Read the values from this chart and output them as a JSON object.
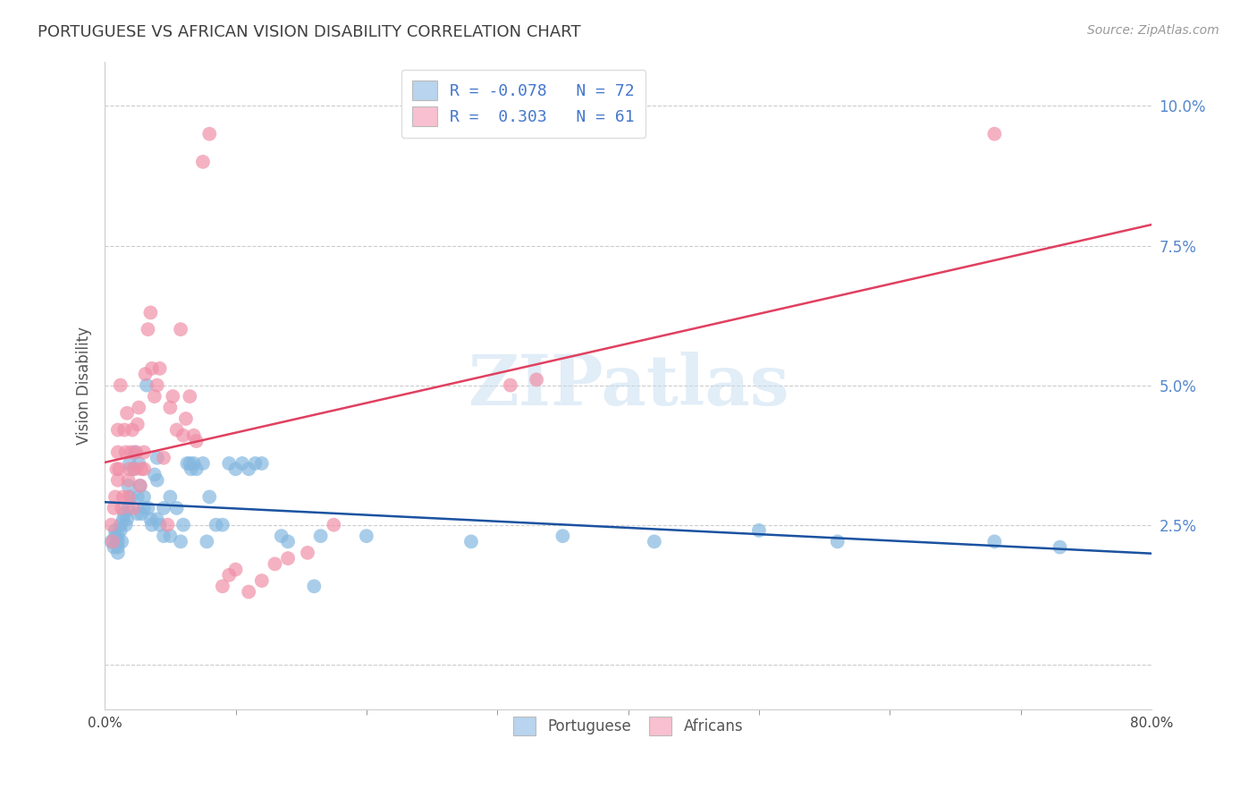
{
  "title": "PORTUGUESE VS AFRICAN VISION DISABILITY CORRELATION CHART",
  "source": "Source: ZipAtlas.com",
  "ylabel": "Vision Disability",
  "xlim": [
    0.0,
    0.8
  ],
  "ylim": [
    -0.008,
    0.108
  ],
  "watermark": "ZIPatlas",
  "portuguese_color": "#85b8e0",
  "africans_color": "#f090a8",
  "regression_portuguese_color": "#1a52a0",
  "regression_africans_color": "#e04060",
  "legend_portuguese_color": "#b8d4ee",
  "legend_africans_color": "#f8c0d0",
  "background_color": "#ffffff",
  "grid_color": "#cccccc",
  "title_color": "#404040",
  "ytick_color": "#5588cc",
  "R_portuguese": -0.078,
  "N_portuguese": 72,
  "R_africans": 0.303,
  "N_africans": 61,
  "portuguese_points": [
    [
      0.005,
      0.022
    ],
    [
      0.007,
      0.021
    ],
    [
      0.008,
      0.023
    ],
    [
      0.008,
      0.024
    ],
    [
      0.01,
      0.022
    ],
    [
      0.01,
      0.02
    ],
    [
      0.01,
      0.021
    ],
    [
      0.01,
      0.023
    ],
    [
      0.012,
      0.024
    ],
    [
      0.012,
      0.025
    ],
    [
      0.013,
      0.022
    ],
    [
      0.014,
      0.026
    ],
    [
      0.015,
      0.027
    ],
    [
      0.016,
      0.025
    ],
    [
      0.017,
      0.026
    ],
    [
      0.018,
      0.028
    ],
    [
      0.018,
      0.032
    ],
    [
      0.019,
      0.036
    ],
    [
      0.02,
      0.03
    ],
    [
      0.022,
      0.035
    ],
    [
      0.023,
      0.038
    ],
    [
      0.025,
      0.027
    ],
    [
      0.025,
      0.03
    ],
    [
      0.026,
      0.036
    ],
    [
      0.027,
      0.032
    ],
    [
      0.028,
      0.027
    ],
    [
      0.03,
      0.03
    ],
    [
      0.03,
      0.028
    ],
    [
      0.032,
      0.05
    ],
    [
      0.033,
      0.028
    ],
    [
      0.035,
      0.026
    ],
    [
      0.036,
      0.025
    ],
    [
      0.038,
      0.034
    ],
    [
      0.04,
      0.033
    ],
    [
      0.04,
      0.026
    ],
    [
      0.04,
      0.037
    ],
    [
      0.042,
      0.025
    ],
    [
      0.045,
      0.023
    ],
    [
      0.045,
      0.028
    ],
    [
      0.05,
      0.023
    ],
    [
      0.05,
      0.03
    ],
    [
      0.055,
      0.028
    ],
    [
      0.058,
      0.022
    ],
    [
      0.06,
      0.025
    ],
    [
      0.063,
      0.036
    ],
    [
      0.065,
      0.036
    ],
    [
      0.066,
      0.035
    ],
    [
      0.068,
      0.036
    ],
    [
      0.07,
      0.035
    ],
    [
      0.075,
      0.036
    ],
    [
      0.078,
      0.022
    ],
    [
      0.08,
      0.03
    ],
    [
      0.085,
      0.025
    ],
    [
      0.09,
      0.025
    ],
    [
      0.095,
      0.036
    ],
    [
      0.1,
      0.035
    ],
    [
      0.105,
      0.036
    ],
    [
      0.11,
      0.035
    ],
    [
      0.115,
      0.036
    ],
    [
      0.12,
      0.036
    ],
    [
      0.135,
      0.023
    ],
    [
      0.14,
      0.022
    ],
    [
      0.16,
      0.014
    ],
    [
      0.165,
      0.023
    ],
    [
      0.2,
      0.023
    ],
    [
      0.28,
      0.022
    ],
    [
      0.35,
      0.023
    ],
    [
      0.42,
      0.022
    ],
    [
      0.5,
      0.024
    ],
    [
      0.56,
      0.022
    ],
    [
      0.68,
      0.022
    ],
    [
      0.73,
      0.021
    ]
  ],
  "africans_points": [
    [
      0.005,
      0.025
    ],
    [
      0.006,
      0.022
    ],
    [
      0.007,
      0.028
    ],
    [
      0.008,
      0.03
    ],
    [
      0.009,
      0.035
    ],
    [
      0.01,
      0.033
    ],
    [
      0.01,
      0.038
    ],
    [
      0.01,
      0.042
    ],
    [
      0.011,
      0.035
    ],
    [
      0.012,
      0.05
    ],
    [
      0.013,
      0.028
    ],
    [
      0.014,
      0.03
    ],
    [
      0.015,
      0.042
    ],
    [
      0.016,
      0.038
    ],
    [
      0.017,
      0.045
    ],
    [
      0.018,
      0.03
    ],
    [
      0.018,
      0.033
    ],
    [
      0.019,
      0.035
    ],
    [
      0.02,
      0.038
    ],
    [
      0.021,
      0.042
    ],
    [
      0.022,
      0.028
    ],
    [
      0.023,
      0.035
    ],
    [
      0.024,
      0.038
    ],
    [
      0.025,
      0.043
    ],
    [
      0.026,
      0.046
    ],
    [
      0.027,
      0.032
    ],
    [
      0.028,
      0.035
    ],
    [
      0.03,
      0.035
    ],
    [
      0.03,
      0.038
    ],
    [
      0.031,
      0.052
    ],
    [
      0.033,
      0.06
    ],
    [
      0.035,
      0.063
    ],
    [
      0.036,
      0.053
    ],
    [
      0.038,
      0.048
    ],
    [
      0.04,
      0.05
    ],
    [
      0.042,
      0.053
    ],
    [
      0.045,
      0.037
    ],
    [
      0.048,
      0.025
    ],
    [
      0.05,
      0.046
    ],
    [
      0.052,
      0.048
    ],
    [
      0.055,
      0.042
    ],
    [
      0.058,
      0.06
    ],
    [
      0.06,
      0.041
    ],
    [
      0.062,
      0.044
    ],
    [
      0.065,
      0.048
    ],
    [
      0.068,
      0.041
    ],
    [
      0.07,
      0.04
    ],
    [
      0.075,
      0.09
    ],
    [
      0.08,
      0.095
    ],
    [
      0.09,
      0.014
    ],
    [
      0.095,
      0.016
    ],
    [
      0.1,
      0.017
    ],
    [
      0.11,
      0.013
    ],
    [
      0.12,
      0.015
    ],
    [
      0.13,
      0.018
    ],
    [
      0.14,
      0.019
    ],
    [
      0.155,
      0.02
    ],
    [
      0.175,
      0.025
    ],
    [
      0.31,
      0.05
    ],
    [
      0.33,
      0.051
    ],
    [
      0.68,
      0.095
    ]
  ]
}
